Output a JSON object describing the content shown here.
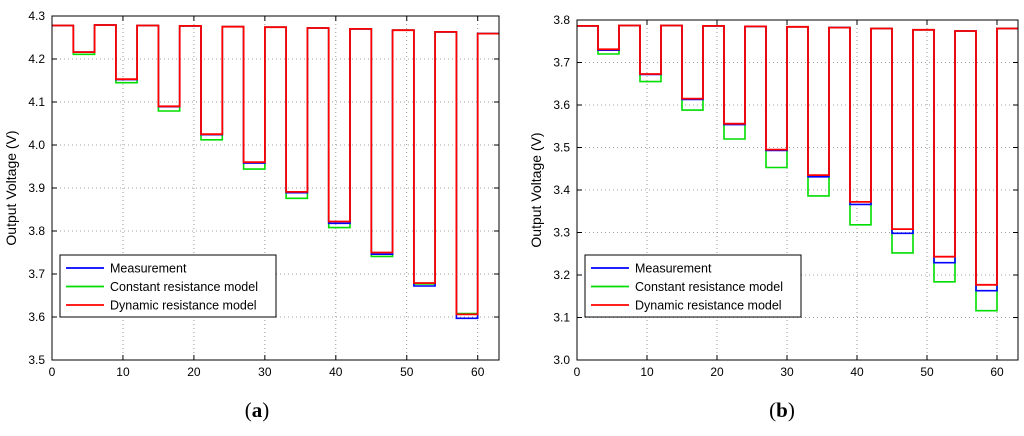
{
  "chart_data": [
    {
      "panel": "a",
      "type": "line",
      "caption_open": "(",
      "caption_letter": "a",
      "caption_close": ")",
      "xlabel": "",
      "ylabel": "Output Voltage (V)",
      "xlim": [
        0,
        63
      ],
      "ylim": [
        3.5,
        4.3
      ],
      "xticks": [
        0,
        10,
        20,
        30,
        40,
        50,
        60
      ],
      "yticks": [
        3.5,
        3.6,
        3.7,
        3.8,
        3.9,
        4.0,
        4.1,
        4.2,
        4.3
      ],
      "grid": true,
      "legend_position": "bottom-left",
      "rest_voltage": [
        4.278,
        4.279,
        4.278,
        4.277,
        4.275,
        4.274,
        4.272,
        4.27,
        4.267,
        4.263,
        4.259
      ],
      "pulses": [
        {
          "start": 3,
          "end": 6,
          "measurement": 4.216,
          "constant": 4.211,
          "dynamic": 4.216
        },
        {
          "start": 9,
          "end": 12,
          "measurement": 4.152,
          "constant": 4.145,
          "dynamic": 4.153
        },
        {
          "start": 15,
          "end": 18,
          "measurement": 4.089,
          "constant": 4.079,
          "dynamic": 4.09
        },
        {
          "start": 21,
          "end": 24,
          "measurement": 4.024,
          "constant": 4.012,
          "dynamic": 4.025
        },
        {
          "start": 27,
          "end": 30,
          "measurement": 3.958,
          "constant": 3.944,
          "dynamic": 3.96
        },
        {
          "start": 33,
          "end": 36,
          "measurement": 3.889,
          "constant": 3.876,
          "dynamic": 3.891
        },
        {
          "start": 39,
          "end": 42,
          "measurement": 3.818,
          "constant": 3.808,
          "dynamic": 3.822
        },
        {
          "start": 45,
          "end": 48,
          "measurement": 3.746,
          "constant": 3.741,
          "dynamic": 3.75
        },
        {
          "start": 51,
          "end": 54,
          "measurement": 3.672,
          "constant": 3.677,
          "dynamic": 3.679
        },
        {
          "start": 57,
          "end": 60,
          "measurement": 3.597,
          "constant": 3.608,
          "dynamic": 3.606
        }
      ],
      "series": [
        {
          "name": "Measurement",
          "color": "#0000ff"
        },
        {
          "name": "Constant resistance model",
          "color": "#00dd00"
        },
        {
          "name": "Dynamic resistance model",
          "color": "#ff0000"
        }
      ]
    },
    {
      "panel": "b",
      "type": "line",
      "caption_open": "(",
      "caption_letter": "b",
      "caption_close": ")",
      "xlabel": "",
      "ylabel": "Output Voltage (V)",
      "xlim": [
        0,
        63
      ],
      "ylim": [
        3.0,
        3.8
      ],
      "xticks": [
        0,
        10,
        20,
        30,
        40,
        50,
        60
      ],
      "yticks": [
        3.0,
        3.1,
        3.2,
        3.3,
        3.4,
        3.5,
        3.6,
        3.7,
        3.8
      ],
      "grid": true,
      "legend_position": "bottom-left",
      "rest_voltage": [
        3.786,
        3.787,
        3.787,
        3.786,
        3.785,
        3.784,
        3.782,
        3.78,
        3.777,
        3.774,
        3.78
      ],
      "pulses": [
        {
          "start": 3,
          "end": 6,
          "measurement": 3.729,
          "constant": 3.72,
          "dynamic": 3.731
        },
        {
          "start": 9,
          "end": 12,
          "measurement": 3.672,
          "constant": 3.655,
          "dynamic": 3.673
        },
        {
          "start": 15,
          "end": 18,
          "measurement": 3.613,
          "constant": 3.588,
          "dynamic": 3.615
        },
        {
          "start": 21,
          "end": 24,
          "measurement": 3.554,
          "constant": 3.52,
          "dynamic": 3.556
        },
        {
          "start": 27,
          "end": 30,
          "measurement": 3.493,
          "constant": 3.453,
          "dynamic": 3.495
        },
        {
          "start": 33,
          "end": 36,
          "measurement": 3.431,
          "constant": 3.386,
          "dynamic": 3.435
        },
        {
          "start": 39,
          "end": 42,
          "measurement": 3.366,
          "constant": 3.318,
          "dynamic": 3.372
        },
        {
          "start": 45,
          "end": 48,
          "measurement": 3.298,
          "constant": 3.252,
          "dynamic": 3.308
        },
        {
          "start": 51,
          "end": 54,
          "measurement": 3.229,
          "constant": 3.184,
          "dynamic": 3.243
        },
        {
          "start": 57,
          "end": 60,
          "measurement": 3.163,
          "constant": 3.116,
          "dynamic": 3.177
        }
      ],
      "series": [
        {
          "name": "Measurement",
          "color": "#0000ff"
        },
        {
          "name": "Constant resistance model",
          "color": "#00dd00"
        },
        {
          "name": "Dynamic resistance model",
          "color": "#ff0000"
        }
      ]
    }
  ]
}
